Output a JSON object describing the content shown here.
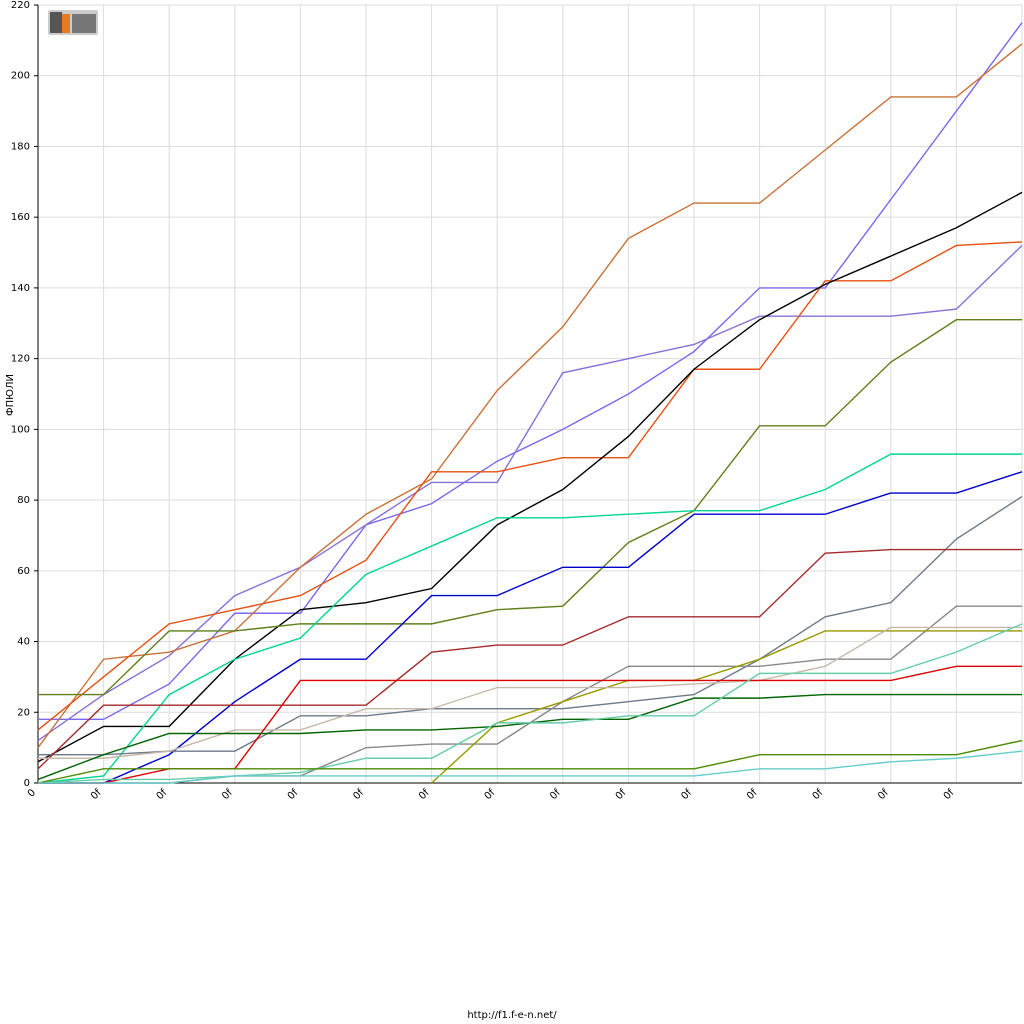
{
  "chart_data": {
    "type": "line",
    "y_label": "ФПЮЛИ",
    "footer": "http://f1.f-e-n.net/",
    "categories": [
      "0",
      "0f",
      "0f",
      "0f",
      "0f",
      "0f",
      "0f",
      "0f",
      "0f",
      "0f",
      "0f",
      "0f",
      "0f",
      "0f",
      "0f",
      null
    ],
    "ylim": [
      0,
      220
    ],
    "yticks": [
      0,
      20,
      40,
      60,
      80,
      100,
      120,
      140,
      160,
      180,
      200,
      220
    ],
    "grid": true,
    "series": [
      {
        "color": "#7b68ee",
        "values": [
          18,
          18,
          28,
          48,
          48,
          73,
          79,
          91,
          100,
          110,
          122,
          140,
          140,
          165,
          190,
          215
        ]
      },
      {
        "color": "#8a6fd8",
        "values": [
          12,
          25,
          36,
          53,
          61,
          73,
          85,
          85,
          116,
          120,
          124,
          132,
          132,
          132,
          134,
          152
        ]
      },
      {
        "color": "#c87137",
        "values": [
          10,
          35,
          37,
          43,
          61,
          76,
          86,
          111,
          129,
          154,
          164,
          164,
          179,
          194,
          194,
          209
        ]
      },
      {
        "color": "#e8500f",
        "values": [
          15,
          30,
          45,
          49,
          53,
          63,
          88,
          88,
          92,
          92,
          117,
          117,
          142,
          142,
          152,
          153
        ]
      },
      {
        "color": "#000000",
        "values": [
          6,
          16,
          16,
          35,
          49,
          51,
          55,
          73,
          83,
          98,
          117,
          131,
          141,
          149,
          157,
          167
        ]
      },
      {
        "color": "#5f7f1a",
        "values": [
          25,
          25,
          43,
          43,
          45,
          45,
          45,
          49,
          50,
          68,
          77,
          101,
          101,
          119,
          131,
          131
        ]
      },
      {
        "color": "#00d68f",
        "values": [
          0,
          2,
          25,
          35,
          41,
          59,
          67,
          75,
          75,
          76,
          77,
          77,
          83,
          93,
          93,
          93
        ]
      },
      {
        "color": "#0000cc",
        "values": [
          0,
          0,
          8,
          23,
          35,
          35,
          53,
          53,
          61,
          61,
          76,
          76,
          76,
          82,
          82,
          88
        ]
      },
      {
        "color": "#6c7a89",
        "values": [
          8,
          8,
          9,
          9,
          19,
          19,
          21,
          21,
          21,
          23,
          25,
          35,
          47,
          51,
          69,
          81
        ]
      },
      {
        "color": "#a52a2a",
        "values": [
          4,
          22,
          22,
          22,
          22,
          22,
          37,
          39,
          39,
          47,
          47,
          47,
          65,
          66,
          66,
          66
        ]
      },
      {
        "color": "#888888",
        "values": [
          0,
          0,
          0,
          2,
          2,
          10,
          11,
          11,
          23,
          33,
          33,
          33,
          35,
          35,
          50,
          50
        ]
      },
      {
        "color": "#999900",
        "values": [
          null,
          null,
          null,
          null,
          null,
          null,
          0,
          17,
          23,
          29,
          29,
          35,
          43,
          43,
          43,
          43
        ]
      },
      {
        "color": "#c8b8a8",
        "values": [
          7,
          7,
          9,
          15,
          15,
          21,
          21,
          27,
          27,
          27,
          28,
          29,
          33,
          44,
          44,
          44
        ]
      },
      {
        "color": "#dd0000",
        "values": [
          0,
          0,
          4,
          4,
          29,
          29,
          29,
          29,
          29,
          29,
          29,
          29,
          29,
          29,
          33,
          33
        ]
      },
      {
        "color": "#006400",
        "values": [
          1,
          8,
          14,
          14,
          14,
          15,
          15,
          16,
          18,
          18,
          24,
          24,
          25,
          25,
          25,
          25
        ]
      },
      {
        "color": "#66cdaa",
        "values": [
          0,
          1,
          1,
          2,
          3,
          7,
          7,
          17,
          17,
          19,
          19,
          31,
          31,
          31,
          37,
          45
        ]
      },
      {
        "color": "#4b8b00",
        "values": [
          0,
          4,
          4,
          4,
          4,
          4,
          4,
          4,
          4,
          4,
          4,
          8,
          8,
          8,
          8,
          12
        ]
      },
      {
        "color": "#66cccc",
        "values": [
          0,
          0,
          0,
          2,
          2,
          2,
          2,
          2,
          2,
          2,
          2,
          4,
          4,
          6,
          7,
          9
        ]
      }
    ]
  }
}
